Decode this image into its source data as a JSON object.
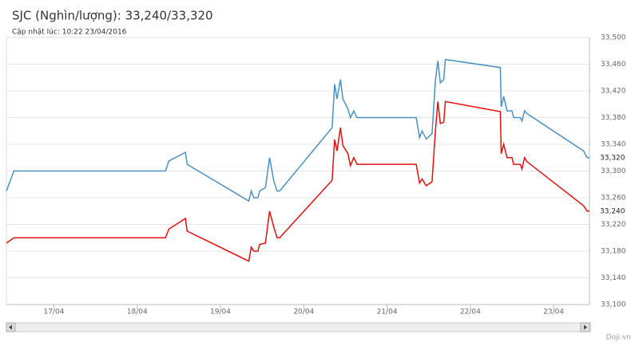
{
  "chart_data": {
    "type": "line",
    "title": "SJC (Nghìn/lượng): 33,240/33,320",
    "subtitle": "Cập nhật lúc: 10:22 23/04/2016",
    "credit": "Doji.vn",
    "x": [
      16.43,
      16.52,
      18.34,
      18.38,
      18.58,
      18.6,
      19.34,
      19.37,
      19.4,
      19.45,
      19.47,
      19.54,
      19.59,
      19.64,
      19.68,
      19.71,
      20.34,
      20.37,
      20.4,
      20.44,
      20.47,
      20.53,
      20.56,
      20.6,
      20.64,
      21.35,
      21.39,
      21.42,
      21.47,
      21.54,
      21.58,
      21.61,
      21.64,
      21.68,
      21.7,
      22.36,
      22.37,
      22.4,
      22.44,
      22.5,
      22.52,
      22.6,
      22.62,
      22.65,
      22.68,
      23.36,
      23.4,
      23.43
    ],
    "series": [
      {
        "color": "#4a90c0",
        "values": [
          33270,
          33300,
          33300,
          33315,
          33328,
          33310,
          33255,
          33270,
          33260,
          33260,
          33270,
          33275,
          33320,
          33285,
          33270,
          33270,
          33365,
          33430,
          33408,
          33437,
          33408,
          33393,
          33380,
          33390,
          33380,
          33380,
          33350,
          33360,
          33348,
          33356,
          33435,
          33465,
          33432,
          33437,
          33467,
          33455,
          33396,
          33412,
          33390,
          33390,
          33380,
          33380,
          33375,
          33390,
          33386,
          33330,
          33320,
          33320
        ],
        "value_labels": [
          null,
          null,
          null,
          null,
          null,
          null,
          null,
          null,
          null,
          null,
          null,
          null,
          null,
          null,
          null,
          null,
          null,
          null,
          null,
          null,
          null,
          null,
          null,
          null,
          null,
          null,
          null,
          null,
          null,
          null,
          null,
          null,
          null,
          null,
          null,
          null,
          null,
          null,
          null,
          null,
          null,
          null,
          null,
          null,
          null,
          null,
          null,
          "33,320"
        ]
      },
      {
        "color": "#e01010",
        "values": [
          33192,
          33200,
          33200,
          33213,
          33229,
          33210,
          33165,
          33186,
          33180,
          33180,
          33190,
          33192,
          33240,
          33216,
          33200,
          33200,
          33286,
          33347,
          33330,
          33365,
          33338,
          33326,
          33308,
          33320,
          33310,
          33310,
          33282,
          33288,
          33278,
          33284,
          33360,
          33404,
          33371,
          33373,
          33404,
          33389,
          33326,
          33340,
          33320,
          33320,
          33310,
          33310,
          33303,
          33320,
          33314,
          33248,
          33240,
          33240
        ],
        "value_labels": [
          null,
          null,
          null,
          null,
          null,
          null,
          null,
          null,
          null,
          null,
          null,
          null,
          null,
          null,
          null,
          null,
          null,
          null,
          null,
          null,
          null,
          null,
          null,
          null,
          null,
          null,
          null,
          null,
          null,
          null,
          null,
          null,
          null,
          null,
          null,
          null,
          null,
          null,
          null,
          null,
          null,
          null,
          null,
          null,
          null,
          null,
          null,
          "33,240"
        ]
      }
    ],
    "xlim": [
      16.43,
      23.43
    ],
    "xticks": [
      {
        "value": 17,
        "label": "17/04"
      },
      {
        "value": 18,
        "label": "18/04"
      },
      {
        "value": 19,
        "label": "19/04"
      },
      {
        "value": 20,
        "label": "20/04"
      },
      {
        "value": 21,
        "label": "21/04"
      },
      {
        "value": 22,
        "label": "22/04"
      },
      {
        "value": 23,
        "label": "23/04"
      }
    ],
    "ylim": [
      33100,
      33500
    ],
    "yticks": [
      {
        "value": 33100,
        "label": "33,100"
      },
      {
        "value": 33140,
        "label": "33,140"
      },
      {
        "value": 33180,
        "label": "33,180"
      },
      {
        "value": 33220,
        "label": "33,220"
      },
      {
        "value": 33260,
        "label": "33,260"
      },
      {
        "value": 33300,
        "label": "33,300"
      },
      {
        "value": 33340,
        "label": "33,340"
      },
      {
        "value": 33380,
        "label": "33,380"
      },
      {
        "value": 33420,
        "label": "33,420"
      },
      {
        "value": 33460,
        "label": "33,460"
      },
      {
        "value": 33500,
        "label": "33,500"
      }
    ],
    "grid": true
  }
}
